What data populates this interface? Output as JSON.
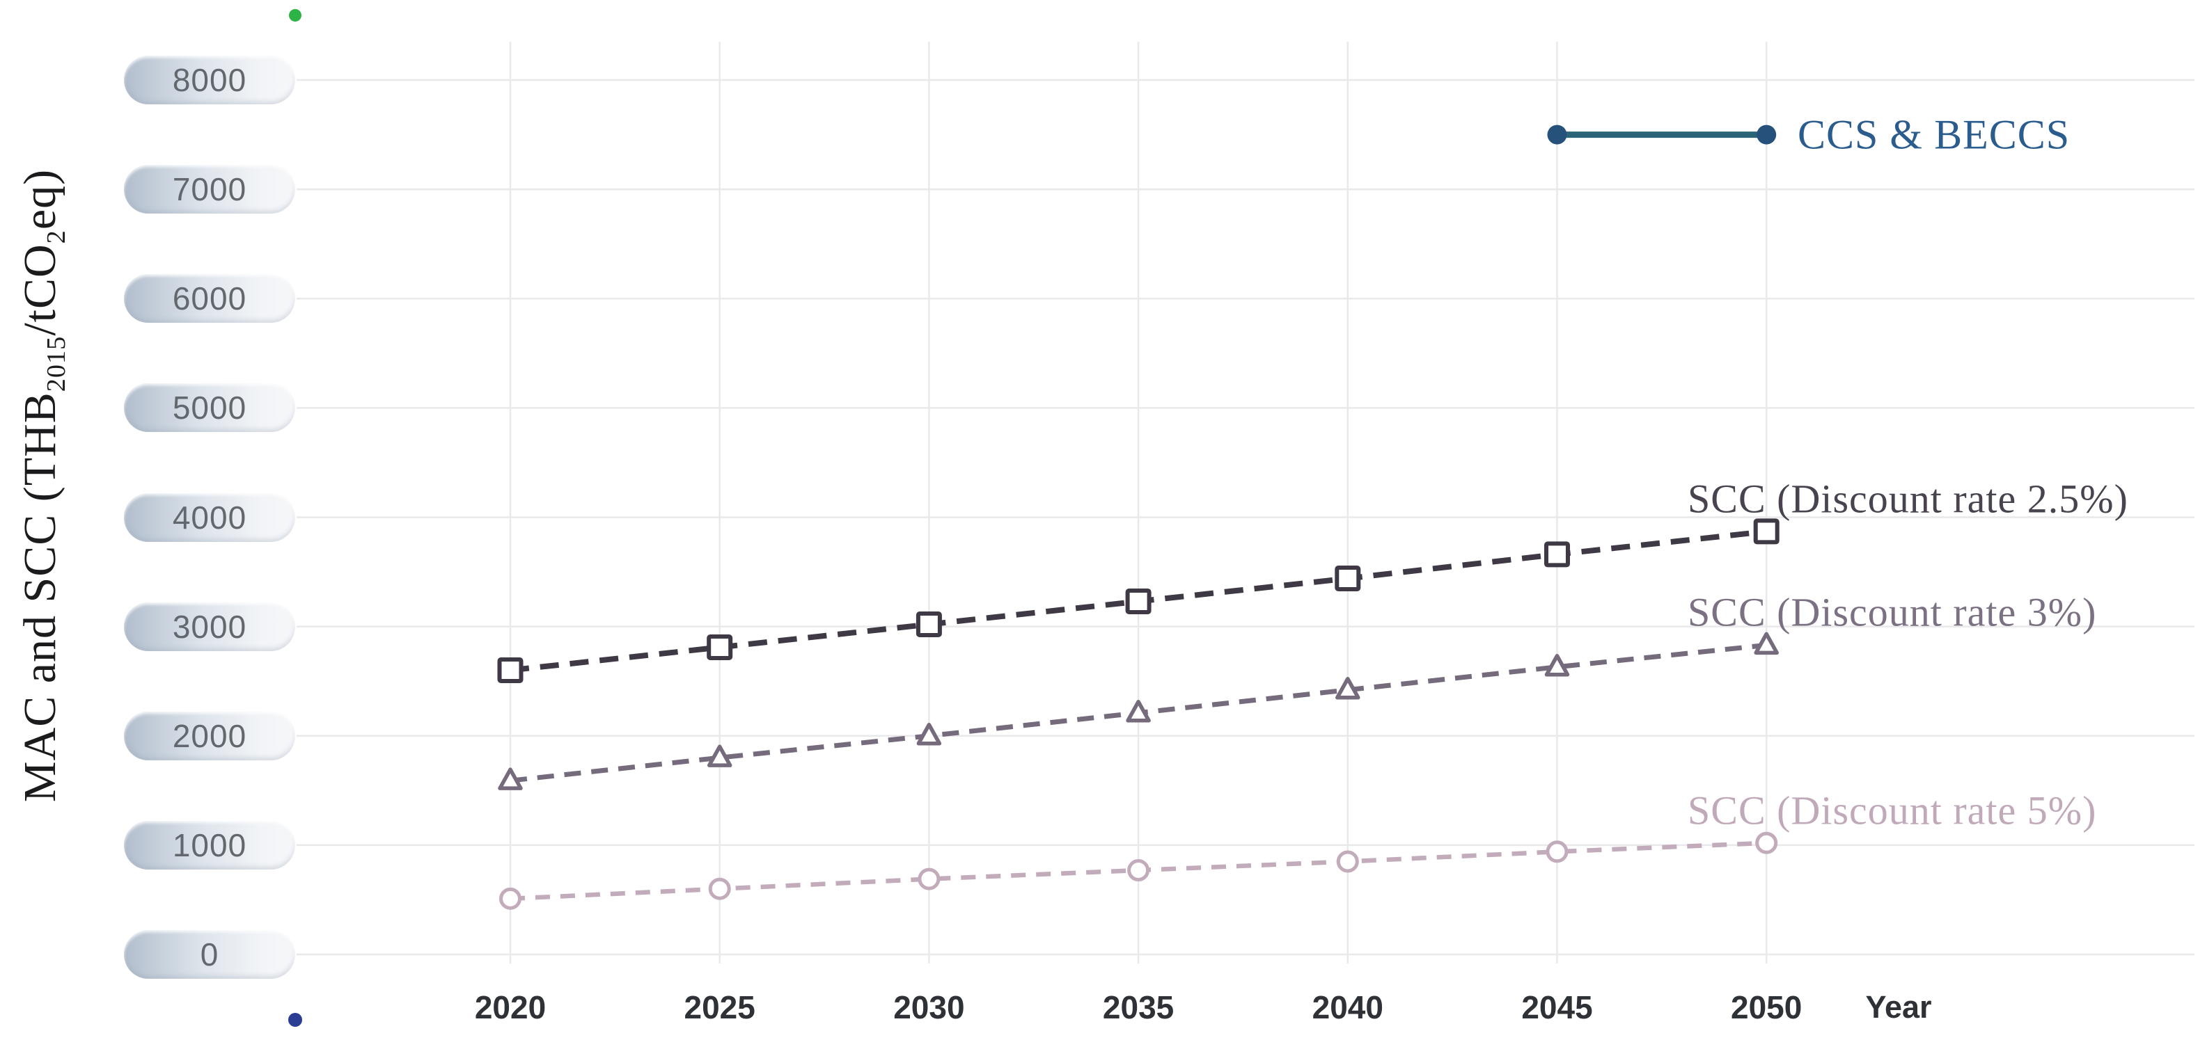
{
  "figure": {
    "background": "#ffffff",
    "y_axis_title": {
      "prefix": "MAC and SCC (THB",
      "sub1": "2015",
      "mid": "/tCO",
      "sub2": "2",
      "suffix": "eq)"
    }
  },
  "chart_data": {
    "type": "line",
    "title": "",
    "xlabel": "Year",
    "ylabel": "MAC and SCC (THB2015/tCO2eq)",
    "x": [
      2020,
      2025,
      2030,
      2035,
      2040,
      2045,
      2050
    ],
    "y_ticks": [
      0,
      1000,
      2000,
      3000,
      4000,
      5000,
      6000,
      7000,
      8000
    ],
    "ylim": [
      0,
      8600
    ],
    "grid": true,
    "legend_position": "inline-right",
    "series": [
      {
        "name": "SCC (Discount rate 2.5%)",
        "marker": "square",
        "line": "dashed",
        "color": "#3e3944",
        "label_color": "#48434e",
        "values": [
          2600,
          2810,
          3020,
          3230,
          3440,
          3660,
          3870
        ]
      },
      {
        "name": "SCC (Discount rate 3%)",
        "marker": "triangle",
        "line": "dashed",
        "color": "#756b7c",
        "label_color": "#7b7182",
        "values": [
          1590,
          1800,
          2000,
          2210,
          2420,
          2630,
          2830
        ]
      },
      {
        "name": "SCC (Discount rate 5%)",
        "marker": "circle",
        "line": "dashed",
        "color": "#c2abba",
        "label_color": "#c0a9b9",
        "values": [
          510,
          600,
          690,
          770,
          850,
          940,
          1020
        ]
      },
      {
        "name": "CCS & BECCS",
        "marker": "dot",
        "line": "solid",
        "color": "#2a6577",
        "dot_color": "#25517a",
        "label_color": "#2b5c8e",
        "x": [
          2045,
          2050
        ],
        "values": [
          7500,
          7500
        ]
      }
    ],
    "axis_accents": {
      "top_dot_color": "#2eb347",
      "bottom_dot_color": "#2a3d92",
      "axis_gradient": [
        "#35a94e",
        "#3f7f70",
        "#35609c",
        "#2c4494"
      ]
    },
    "grid_color": "#e9e9eb"
  }
}
